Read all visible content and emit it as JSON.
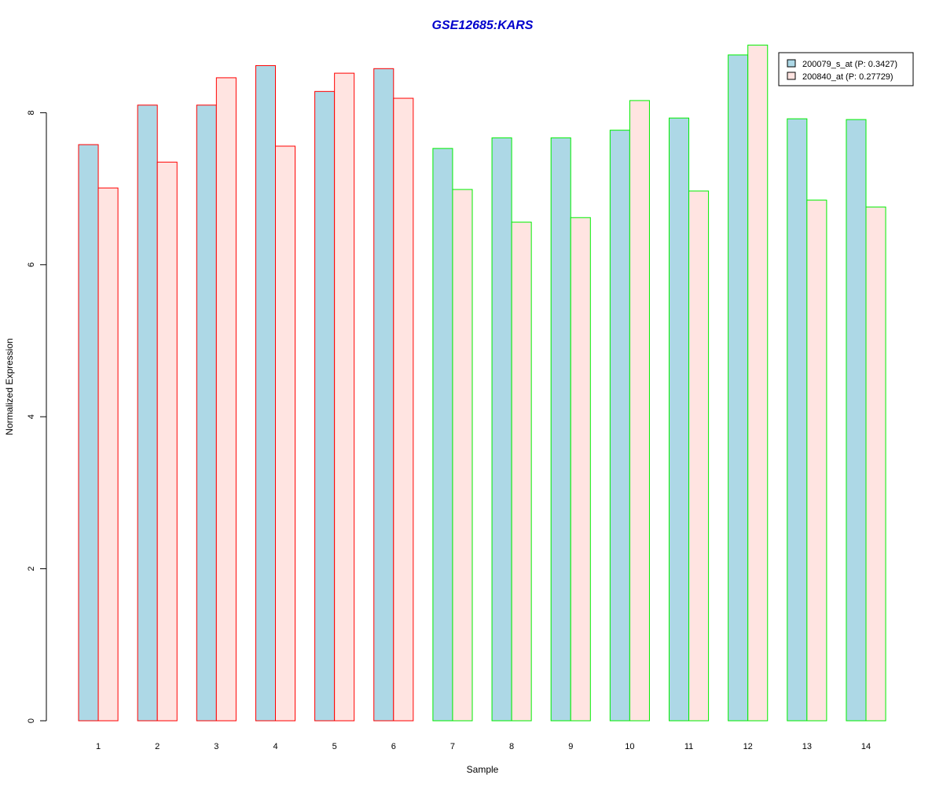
{
  "chart_data": {
    "type": "bar",
    "title": "GSE12685:KARS",
    "xlabel": "Sample",
    "ylabel": "Normalized Expression",
    "categories": [
      "1",
      "2",
      "3",
      "4",
      "5",
      "6",
      "7",
      "8",
      "9",
      "10",
      "11",
      "12",
      "13",
      "14"
    ],
    "ylim": [
      0,
      8.8
    ],
    "yticks": [
      0,
      2,
      4,
      6,
      8
    ],
    "grid": false,
    "legend_position": "top-right",
    "series": [
      {
        "name": "200079_s_at (P: 0.3427)",
        "fill": "#add8e6",
        "values": [
          7.58,
          8.1,
          8.1,
          8.62,
          8.28,
          8.58,
          7.53,
          7.67,
          7.67,
          7.77,
          7.93,
          8.76,
          7.92,
          7.91
        ]
      },
      {
        "name": "200840_at (P: 0.27729)",
        "fill": "#ffe4e1",
        "values": [
          7.01,
          7.35,
          8.46,
          7.56,
          8.52,
          8.19,
          6.99,
          6.56,
          6.62,
          8.16,
          6.97,
          8.89,
          6.85,
          6.76
        ]
      }
    ],
    "group_border_colors": [
      "#ff0000",
      "#ff0000",
      "#ff0000",
      "#ff0000",
      "#ff0000",
      "#ff0000",
      "#00ee00",
      "#00ee00",
      "#00ee00",
      "#00ee00",
      "#00ee00",
      "#00ee00",
      "#00ee00",
      "#00ee00"
    ],
    "title_color": "#0000cc"
  }
}
